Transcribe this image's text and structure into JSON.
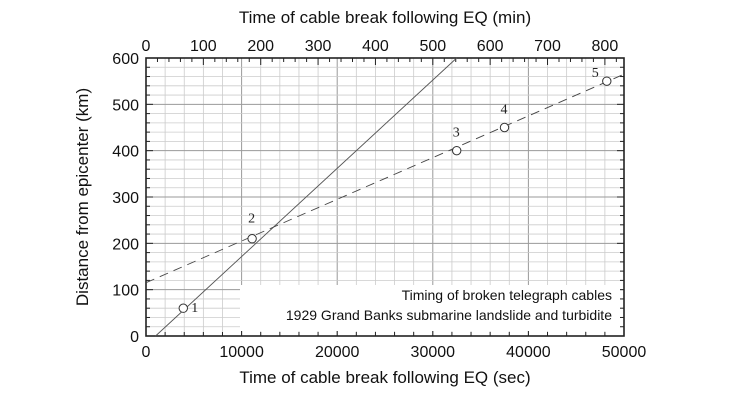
{
  "chart_data": {
    "type": "scatter",
    "xlabel": "Time of cable break following EQ (sec)",
    "x2label": "Time of cable break following EQ (min)",
    "ylabel": "Distance from epicenter (km)",
    "xlim": [
      0,
      50000
    ],
    "x2lim": [
      0,
      833.333
    ],
    "ylim": [
      0,
      600
    ],
    "x_ticks": [
      "0",
      "10000",
      "20000",
      "30000",
      "40000",
      "50000"
    ],
    "x_tick_values": [
      0,
      10000,
      20000,
      30000,
      40000,
      50000
    ],
    "x2_ticks": [
      "0",
      "100",
      "200",
      "300",
      "400",
      "500",
      "600",
      "700",
      "800"
    ],
    "x2_tick_values": [
      0,
      100,
      200,
      300,
      400,
      500,
      600,
      700,
      800
    ],
    "y_ticks": [
      "0",
      "100",
      "200",
      "300",
      "400",
      "500",
      "600"
    ],
    "y_tick_values": [
      0,
      100,
      200,
      300,
      400,
      500,
      600
    ],
    "grid": true,
    "points": [
      {
        "label": "1",
        "x": 3900,
        "y": 60
      },
      {
        "label": "2",
        "x": 11100,
        "y": 210
      },
      {
        "label": "3",
        "x": 32500,
        "y": 400
      },
      {
        "label": "4",
        "x": 37500,
        "y": 450
      },
      {
        "label": "5",
        "x": 48200,
        "y": 550
      }
    ],
    "lines": [
      {
        "style": "solid",
        "x": [
          1000,
          32500
        ],
        "y": [
          0,
          600
        ]
      },
      {
        "style": "dashed",
        "x": [
          0,
          50000
        ],
        "y": [
          115,
          565
        ]
      }
    ],
    "annotation": [
      "Timing of broken telegraph cables",
      "1929 Grand Banks submarine landslide and turbidite"
    ]
  }
}
